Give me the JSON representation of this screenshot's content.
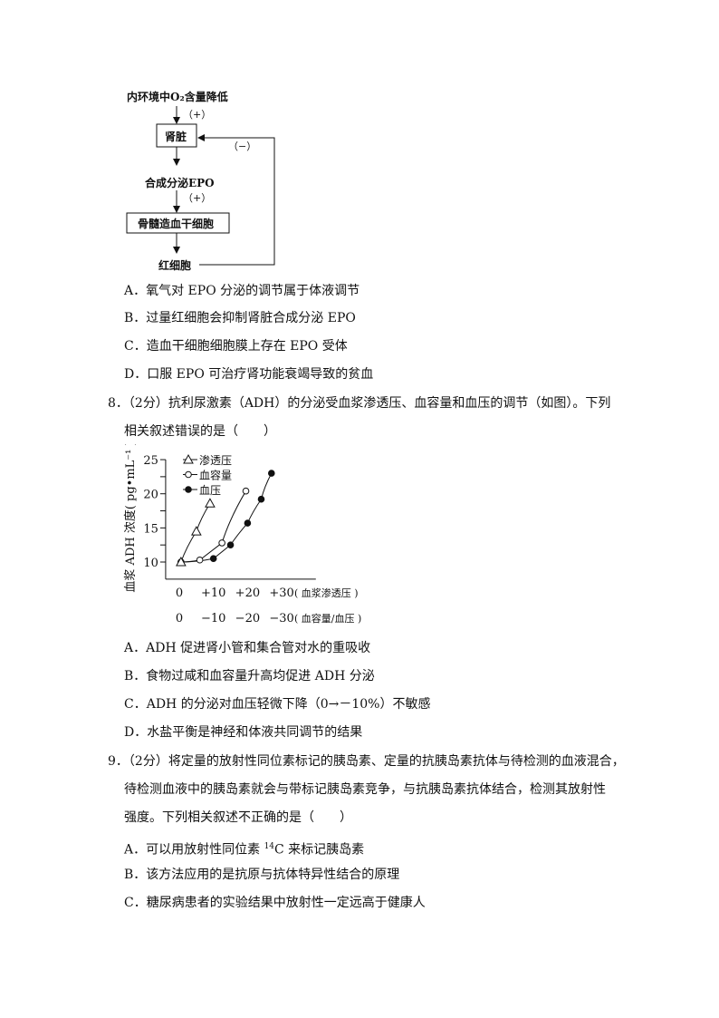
{
  "flowchart": {
    "top": "内环境中O₂含量降低",
    "plus1": "（+）",
    "box1": "肾脏",
    "minus": "（−）",
    "mid": "合成分泌EPO",
    "plus2": "（+）",
    "box2": "骨髓造血干细胞",
    "bottom": "红细胞"
  },
  "q7_options": [
    "A．氧气对 EPO 分泌的调节属于体液调节",
    "B．过量红细胞会抑制肾脏合成分泌 EPO",
    "C．造血干细胞细胞膜上存在 EPO 受体",
    "D．口服 EPO 可治疗肾功能衰竭导致的贫血"
  ],
  "q8": {
    "line1": "8．（2分）抗利尿激素（ADH）的分泌受血浆渗透压、血容量和血压的调节（如图）。下列",
    "line2": "相关叙述错误的是（　　）",
    "options": [
      "A．ADH 促进肾小管和集合管对水的重吸收",
      "B．食物过咸和血容量升高均促进 ADH 分泌",
      "C．ADH 的分泌对血压轻微下降（0→－10%）不敏感",
      "D．水盐平衡是神经和体液共同调节的结果"
    ]
  },
  "chart_data": {
    "type": "line",
    "ylabel": "血浆 ADH 浓度( pg•mL⁻¹ )",
    "yticks": [
      "25",
      "20",
      "15",
      "10"
    ],
    "ylim": [
      7.5,
      25
    ],
    "xlim": [
      -4,
      40
    ],
    "xticks_row1": [
      "0",
      "+10",
      "+20",
      "+30"
    ],
    "xlabel_row1": "( 血浆渗透压 )",
    "xticks_row2": [
      "0",
      "−10",
      "−20",
      "−30"
    ],
    "xlabel_row2": "( 血容量/血压 )",
    "xtick_values": [
      0,
      10,
      20,
      30
    ],
    "legend_position": "top-left",
    "series": [
      {
        "name": "渗透压",
        "marker": "open-triangle",
        "x": [
          0.5,
          5,
          9
        ],
        "y": [
          10,
          14.5,
          18.6
        ]
      },
      {
        "name": "血容量",
        "marker": "open-circle",
        "x": [
          0.5,
          6,
          12.5,
          19.5
        ],
        "y": [
          10,
          10.3,
          12.8,
          20.4
        ]
      },
      {
        "name": "血压",
        "marker": "filled-circle",
        "x": [
          0.5,
          10,
          15,
          20,
          24,
          27
        ],
        "y": [
          10,
          10.5,
          12.5,
          15.7,
          19.2,
          23
        ]
      }
    ]
  },
  "q9": {
    "line1": "9．（2分）将定量的放射性同位素标记的胰岛素、定量的抗胰岛素抗体与待检测的血液混合，",
    "line2": "待检测血液中的胰岛素就会与带标记胰岛素竞争，与抗胰岛素抗体结合，检测其放射性",
    "line3": "强度。下列相关叙述不正确的是（　　）",
    "optA_pre": "A．可以用放射性同位素 ",
    "optA_sup": "14",
    "optA_post": "C 来标记胰岛素",
    "optB": "B．该方法应用的是抗原与抗体特异性结合的原理",
    "optC": "C．糖尿病患者的实验结果中放射性一定远高于健康人"
  }
}
